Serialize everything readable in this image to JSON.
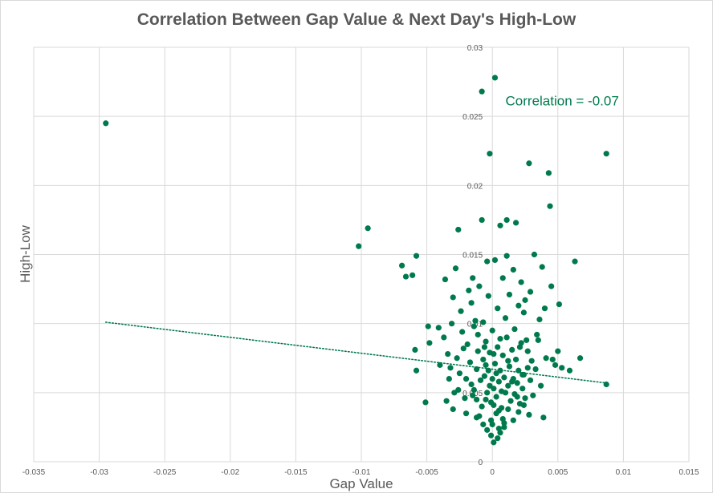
{
  "chart_data": {
    "type": "scatter",
    "title": "Correlation Between Gap Value & Next Day's High-Low",
    "xlabel": "Gap Value",
    "ylabel": "High-Low",
    "xlim": [
      -0.035,
      0.015
    ],
    "ylim": [
      0,
      0.03
    ],
    "x_ticks": [
      -0.035,
      -0.03,
      -0.025,
      -0.02,
      -0.015,
      -0.01,
      -0.005,
      0,
      0.005,
      0.01,
      0.015
    ],
    "x_tick_labels": [
      "-0.035",
      "-0.03",
      "-0.025",
      "-0.02",
      "-0.015",
      "-0.01",
      "-0.005",
      "0",
      "0.005",
      "0.01",
      "0.015"
    ],
    "y_ticks": [
      0,
      0.005,
      0.01,
      0.015,
      0.02,
      0.025,
      0.03
    ],
    "y_tick_labels": [
      "0",
      "0.005",
      "0.01",
      "0.015",
      "0.02",
      "0.025",
      "0.03"
    ],
    "grid": true,
    "point_color": "#007a4d",
    "annotation": "Correlation = -0.07",
    "trendline": {
      "style": "dotted",
      "color": "#007a4d",
      "start": [
        -0.0295,
        0.0101
      ],
      "end": [
        0.0087,
        0.0057
      ]
    },
    "points": [
      [
        -0.0295,
        0.0245
      ],
      [
        -0.0102,
        0.0156
      ],
      [
        -0.0095,
        0.0169
      ],
      [
        -0.0069,
        0.0142
      ],
      [
        -0.0066,
        0.0134
      ],
      [
        -0.0061,
        0.0135
      ],
      [
        -0.0058,
        0.0149
      ],
      [
        -0.0059,
        0.0081
      ],
      [
        -0.0058,
        0.0066
      ],
      [
        -0.0051,
        0.0043
      ],
      [
        -0.0049,
        0.0098
      ],
      [
        -0.0048,
        0.0086
      ],
      [
        -0.0041,
        0.0097
      ],
      [
        -0.0036,
        0.0132
      ],
      [
        -0.0034,
        0.0078
      ],
      [
        -0.0032,
        0.0068
      ],
      [
        -0.003,
        0.0119
      ],
      [
        -0.0028,
        0.014
      ],
      [
        -0.0026,
        0.0168
      ],
      [
        -0.0024,
        0.0109
      ],
      [
        -0.0022,
        0.0082
      ],
      [
        -0.002,
        0.006
      ],
      [
        -0.0018,
        0.0124
      ],
      [
        -0.0016,
        0.0115
      ],
      [
        -0.0015,
        0.0133
      ],
      [
        -0.0014,
        0.0052
      ],
      [
        -0.0013,
        0.0102
      ],
      [
        -0.0012,
        0.0045
      ],
      [
        -0.0011,
        0.0092
      ],
      [
        -0.001,
        0.0127
      ],
      [
        -0.0008,
        0.0175
      ],
      [
        -0.0008,
        0.0268
      ],
      [
        -0.0007,
        0.0101
      ],
      [
        -0.0006,
        0.0083
      ],
      [
        -0.0005,
        0.007
      ],
      [
        -0.0004,
        0.0145
      ],
      [
        -0.0003,
        0.012
      ],
      [
        -0.0002,
        0.0223
      ],
      [
        -0.0002,
        0.0055
      ],
      [
        -0.0001,
        0.003
      ],
      [
        0.0,
        0.0095
      ],
      [
        0.0001,
        0.0078
      ],
      [
        0.0001,
        0.0041
      ],
      [
        0.0002,
        0.0146
      ],
      [
        0.0002,
        0.0278
      ],
      [
        0.0003,
        0.0064
      ],
      [
        0.0004,
        0.0111
      ],
      [
        0.0005,
        0.0037
      ],
      [
        0.0006,
        0.0171
      ],
      [
        0.0006,
        0.0089
      ],
      [
        0.0007,
        0.0051
      ],
      [
        0.0008,
        0.0133
      ],
      [
        0.0009,
        0.0028
      ],
      [
        0.001,
        0.0104
      ],
      [
        0.0011,
        0.0149
      ],
      [
        0.0011,
        0.0175
      ],
      [
        0.0012,
        0.0073
      ],
      [
        0.0013,
        0.0121
      ],
      [
        0.0015,
        0.0058
      ],
      [
        0.0016,
        0.0139
      ],
      [
        0.0017,
        0.0096
      ],
      [
        0.0018,
        0.0173
      ],
      [
        0.0019,
        0.0047
      ],
      [
        0.002,
        0.0113
      ],
      [
        0.0021,
        0.0083
      ],
      [
        0.0022,
        0.013
      ],
      [
        0.0023,
        0.0063
      ],
      [
        0.0024,
        0.0108
      ],
      [
        0.0025,
        0.0117
      ],
      [
        0.0026,
        0.0088
      ],
      [
        0.0027,
        0.0068
      ],
      [
        0.0028,
        0.0216
      ],
      [
        0.0029,
        0.0123
      ],
      [
        0.003,
        0.0073
      ],
      [
        0.0032,
        0.015
      ],
      [
        0.0034,
        0.0092
      ],
      [
        0.0036,
        0.0103
      ],
      [
        0.0038,
        0.0141
      ],
      [
        0.0039,
        0.0032
      ],
      [
        0.004,
        0.0111
      ],
      [
        0.0041,
        0.0075
      ],
      [
        0.0043,
        0.0209
      ],
      [
        0.0044,
        0.0185
      ],
      [
        0.0045,
        0.0127
      ],
      [
        0.0046,
        0.0074
      ],
      [
        0.0048,
        0.007
      ],
      [
        0.005,
        0.008
      ],
      [
        0.0051,
        0.0114
      ],
      [
        0.0053,
        0.0068
      ],
      [
        0.0059,
        0.0066
      ],
      [
        0.0063,
        0.0145
      ],
      [
        0.0067,
        0.0075
      ],
      [
        0.0087,
        0.0223
      ],
      [
        0.0087,
        0.0056
      ],
      [
        -0.004,
        0.007
      ],
      [
        -0.0037,
        0.009
      ],
      [
        -0.0033,
        0.006
      ],
      [
        -0.0031,
        0.01
      ],
      [
        -0.0029,
        0.005
      ],
      [
        -0.0027,
        0.0075
      ],
      [
        -0.0025,
        0.0064
      ],
      [
        -0.0023,
        0.0094
      ],
      [
        -0.0021,
        0.0046
      ],
      [
        -0.0019,
        0.0085
      ],
      [
        -0.0017,
        0.0072
      ],
      [
        -0.0016,
        0.0056
      ],
      [
        -0.0014,
        0.0098
      ],
      [
        -0.0012,
        0.0067
      ],
      [
        -0.0011,
        0.008
      ],
      [
        -0.0009,
        0.0059
      ],
      [
        -0.0008,
        0.004
      ],
      [
        -0.0007,
        0.0074
      ],
      [
        -0.0006,
        0.0062
      ],
      [
        -0.0005,
        0.0087
      ],
      [
        -0.0004,
        0.005
      ],
      [
        -0.0003,
        0.0066
      ],
      [
        -0.0002,
        0.0079
      ],
      [
        -0.0001,
        0.0043
      ],
      [
        0.0,
        0.006
      ],
      [
        0.0001,
        0.0053
      ],
      [
        0.0002,
        0.0071
      ],
      [
        0.0003,
        0.0047
      ],
      [
        0.0004,
        0.0083
      ],
      [
        0.0005,
        0.0058
      ],
      [
        0.0006,
        0.0066
      ],
      [
        0.0007,
        0.0039
      ],
      [
        0.0008,
        0.0077
      ],
      [
        0.0009,
        0.0061
      ],
      [
        0.001,
        0.005
      ],
      [
        0.0011,
        0.009
      ],
      [
        0.0012,
        0.0055
      ],
      [
        0.0013,
        0.0069
      ],
      [
        0.0014,
        0.0044
      ],
      [
        0.0015,
        0.0081
      ],
      [
        0.0016,
        0.006
      ],
      [
        0.0017,
        0.0049
      ],
      [
        0.0018,
        0.0074
      ],
      [
        0.0019,
        0.0057
      ],
      [
        0.002,
        0.0066
      ],
      [
        0.0021,
        0.0042
      ],
      [
        0.0022,
        0.0086
      ],
      [
        0.0023,
        0.0053
      ],
      [
        0.0024,
        0.0063
      ],
      [
        0.0025,
        0.0046
      ],
      [
        0.0027,
        0.008
      ],
      [
        0.0029,
        0.0059
      ],
      [
        0.0031,
        0.0048
      ],
      [
        0.0033,
        0.0067
      ],
      [
        0.0035,
        0.0088
      ],
      [
        0.0037,
        0.0055
      ],
      [
        -0.0035,
        0.0044
      ],
      [
        -0.003,
        0.0038
      ],
      [
        -0.0026,
        0.0052
      ],
      [
        -0.002,
        0.0035
      ],
      [
        -0.0015,
        0.0048
      ],
      [
        -0.001,
        0.0033
      ],
      [
        -0.0005,
        0.0045
      ],
      [
        0.0,
        0.0027
      ],
      [
        0.0003,
        0.0035
      ],
      [
        0.0005,
        0.0024
      ],
      [
        0.0008,
        0.0031
      ],
      [
        0.0012,
        0.0038
      ],
      [
        0.0016,
        0.003
      ],
      [
        0.002,
        0.0036
      ],
      [
        0.0024,
        0.0041
      ],
      [
        0.0028,
        0.0034
      ],
      [
        -0.0001,
        0.0019
      ],
      [
        0.0001,
        0.0014
      ],
      [
        0.0004,
        0.0017
      ],
      [
        -0.0004,
        0.0023
      ],
      [
        0.0006,
        0.0021
      ],
      [
        -0.0007,
        0.0027
      ],
      [
        0.0009,
        0.0025
      ],
      [
        -0.0012,
        0.0032
      ]
    ]
  }
}
